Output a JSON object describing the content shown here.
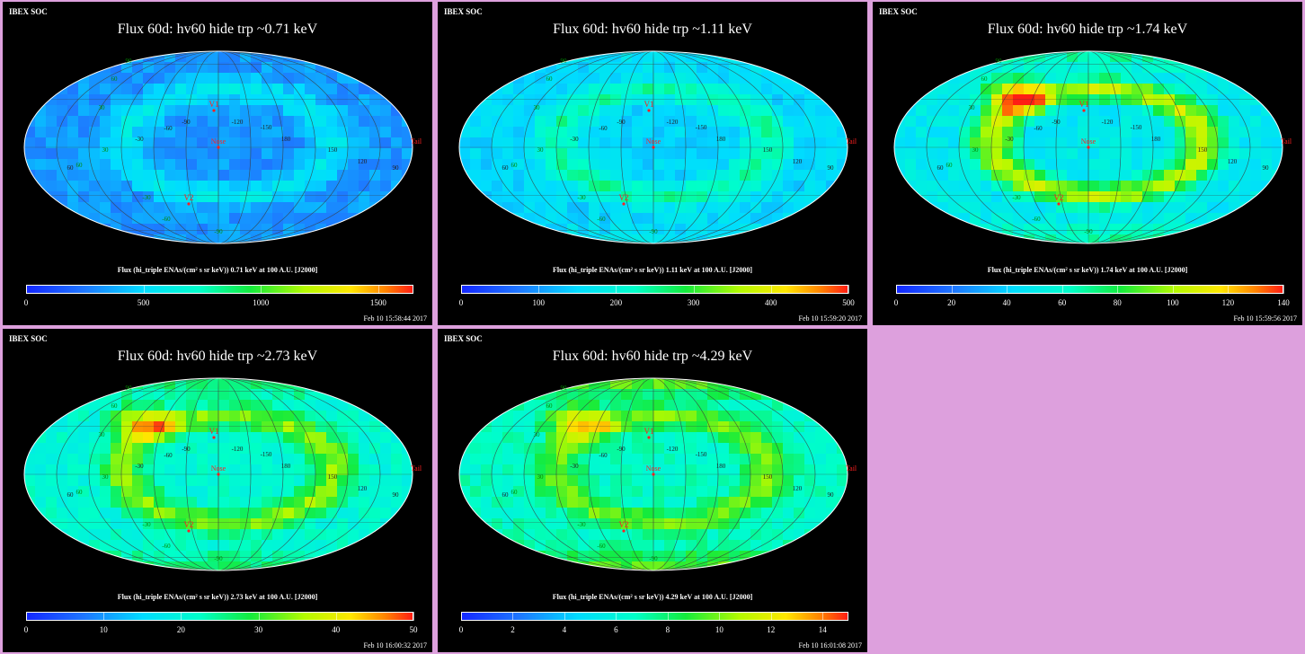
{
  "panels": [
    {
      "org": "IBEX SOC",
      "title": "Flux   60d: hv60 hide trp ~0.71 keV",
      "colorbar_label": "Flux (hi_triple ENAs/(cm² s sr keV))  0.71 keV at 100 A.U. [J2000]",
      "ticks": [
        "0",
        "500",
        "1000",
        "1500"
      ],
      "tick_values": [
        0,
        500,
        1000,
        1500
      ],
      "range": [
        0,
        1650
      ],
      "date": "Feb 10 15:58:44 2017",
      "base_level": 0.2,
      "ribbon_level": 0.36,
      "pole_level": 0.2
    },
    {
      "org": "IBEX SOC",
      "title": "Flux   60d: hv60 hide trp ~1.11 keV",
      "colorbar_label": "Flux (hi_triple ENAs/(cm² s sr keV))  1.11 keV at 100 A.U. [J2000]",
      "ticks": [
        "0",
        "100",
        "200",
        "300",
        "400",
        "500"
      ],
      "tick_values": [
        0,
        100,
        200,
        300,
        400,
        500
      ],
      "range": [
        0,
        500
      ],
      "date": "Feb 10 15:59:20 2017",
      "base_level": 0.3,
      "ribbon_level": 0.5,
      "pole_level": 0.33
    },
    {
      "org": "IBEX SOC",
      "title": "Flux   60d: hv60 hide trp ~1.74 keV",
      "colorbar_label": "Flux (hi_triple ENAs/(cm² s sr keV))  1.74 keV at 100 A.U. [J2000]",
      "ticks": [
        "0",
        "20",
        "40",
        "60",
        "80",
        "100",
        "120",
        "140"
      ],
      "tick_values": [
        0,
        20,
        40,
        60,
        80,
        100,
        120,
        140
      ],
      "range": [
        0,
        140
      ],
      "date": "Feb 10 15:59:56 2017",
      "base_level": 0.35,
      "ribbon_level": 0.78,
      "pole_level": 0.5
    },
    {
      "org": "IBEX SOC",
      "title": "Flux   60d: hv60 hide trp ~2.73 keV",
      "colorbar_label": "Flux (hi_triple ENAs/(cm² s sr keV))  2.73 keV at 100 A.U. [J2000]",
      "ticks": [
        "0",
        "10",
        "20",
        "30",
        "40",
        "50"
      ],
      "tick_values": [
        0,
        10,
        20,
        30,
        40,
        50
      ],
      "range": [
        0,
        50
      ],
      "date": "Feb 10 16:00:32 2017",
      "base_level": 0.42,
      "ribbon_level": 0.7,
      "pole_level": 0.55
    },
    {
      "org": "IBEX SOC",
      "title": "Flux   60d: hv60 hide trp ~4.29 keV",
      "colorbar_label": "Flux (hi_triple ENAs/(cm² s sr keV))  4.29 keV at 100 A.U. [J2000]",
      "ticks": [
        "0",
        "2",
        "4",
        "6",
        "8",
        "10",
        "12",
        "14"
      ],
      "tick_values": [
        0,
        2,
        4,
        6,
        8,
        10,
        12,
        14
      ],
      "range": [
        0,
        15
      ],
      "date": "Feb 10 16:01:08 2017",
      "base_level": 0.45,
      "ribbon_level": 0.68,
      "pole_level": 0.66
    }
  ],
  "map_labels": {
    "nose": "Nose",
    "tail": "Tail",
    "v1": "V1",
    "v2": "V2",
    "lon": [
      "-90",
      "-120",
      "-150",
      "180",
      "150",
      "120",
      "90",
      "-60",
      "-30",
      "60"
    ],
    "lat": [
      "90",
      "60",
      "30",
      "30",
      "60",
      "-30",
      "-60",
      "-90"
    ]
  },
  "colors": {
    "background": "#dda0dd",
    "panel": "#000000",
    "nose_marker": "#ff2020",
    "grid_label": "#008800"
  }
}
